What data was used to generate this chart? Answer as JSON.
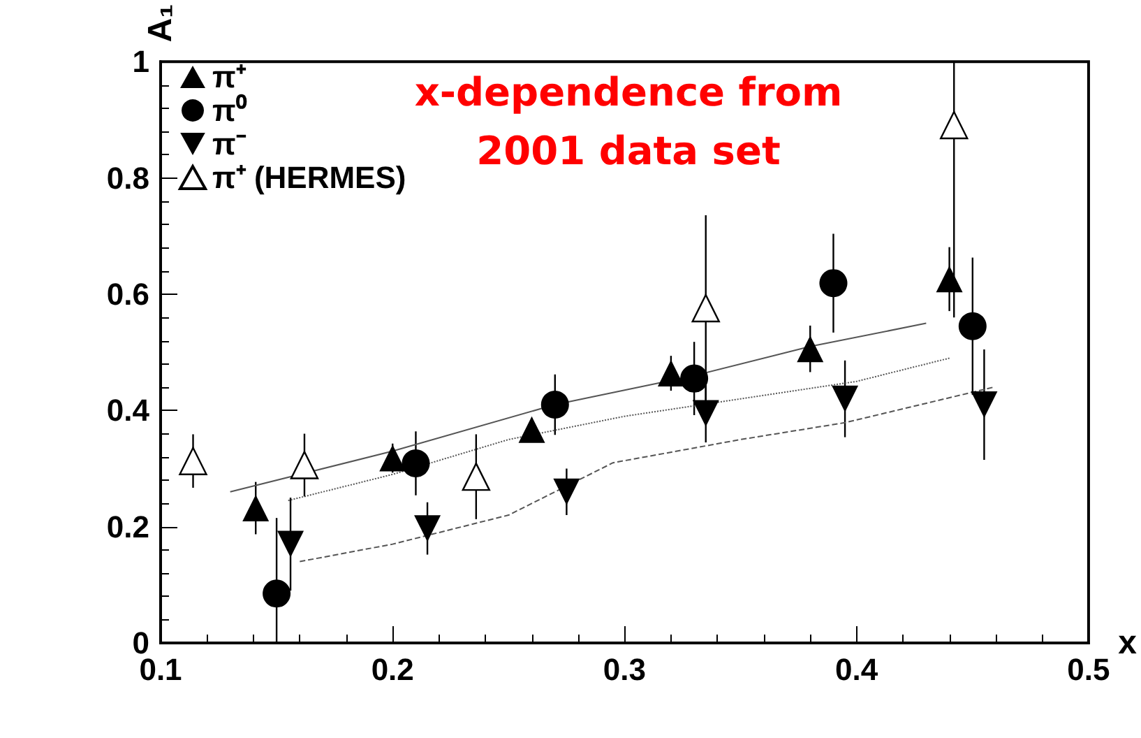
{
  "chart_data": {
    "type": "scatter",
    "title": "x-dependence from\n2001 data set",
    "xlabel": "x",
    "ylabel": "A₁",
    "xlim": [
      0.1,
      0.5
    ],
    "xticks": [
      0.1,
      0.2,
      0.3,
      0.4,
      0.5
    ],
    "ylim": [
      0,
      1
    ],
    "yticks": [
      0,
      0.2,
      0.4,
      0.6,
      0.8,
      1
    ],
    "legend": "top left",
    "grid": false,
    "series": [
      {
        "name": "π⁺",
        "color": "#000000",
        "marker": "triangle",
        "x": [
          0.141,
          0.2,
          0.26,
          0.32,
          0.38,
          0.44
        ],
        "values": [
          0.232,
          0.318,
          0.367,
          0.464,
          0.506,
          0.626
        ],
        "errors": [
          0.045,
          0.025,
          0.02,
          0.03,
          0.04,
          0.055
        ]
      },
      {
        "name": "π⁰",
        "color": "#000000",
        "marker": "circle",
        "x": [
          0.15,
          0.21,
          0.27,
          0.33,
          0.39,
          0.45
        ],
        "values": [
          0.085,
          0.309,
          0.41,
          0.455,
          0.619,
          0.545
        ],
        "errors": [
          [
            0,
            0.215
          ],
          0.055,
          0.052,
          0.063,
          0.085,
          0.118
        ]
      },
      {
        "name": "π⁻",
        "color": "#000000",
        "marker": "triangle-down",
        "x": [
          0.156,
          0.215,
          0.275,
          0.335,
          0.395,
          0.455
        ],
        "values": [
          0.17,
          0.197,
          0.26,
          0.395,
          0.42,
          0.41
        ],
        "errors": [
          0.08,
          0.045,
          0.04,
          0.05,
          0.066,
          0.095
        ]
      },
      {
        "name": "π⁺ (HERMES)",
        "color": "#000000",
        "marker": "triangle-open",
        "x": [
          0.114,
          0.162,
          0.236,
          0.335,
          0.442
        ],
        "values": [
          0.313,
          0.306,
          0.286,
          0.576,
          0.891
        ],
        "errors": [
          0.046,
          0.054,
          0.073,
          0.16,
          [
            0.56,
            1
          ]
        ]
      },
      {
        "type": "line",
        "color": "#555555",
        "line_style": "solid",
        "marker": "none",
        "x": [
          0.13,
          0.2,
          0.27,
          0.33,
          0.38,
          0.43
        ],
        "values": [
          0.26,
          0.33,
          0.41,
          0.46,
          0.51,
          0.55
        ]
      },
      {
        "type": "line",
        "color": "#555555",
        "line_style": "dotted",
        "marker": "none",
        "x": [
          0.155,
          0.2,
          0.25,
          0.3,
          0.35,
          0.4,
          0.44
        ],
        "values": [
          0.245,
          0.29,
          0.35,
          0.39,
          0.42,
          0.45,
          0.49
        ]
      },
      {
        "type": "line",
        "color": "#555555",
        "line_style": "dashed",
        "marker": "none",
        "x": [
          0.16,
          0.2,
          0.25,
          0.295,
          0.35,
          0.395,
          0.459
        ],
        "values": [
          0.14,
          0.17,
          0.22,
          0.31,
          0.35,
          0.379,
          0.44
        ]
      }
    ]
  }
}
